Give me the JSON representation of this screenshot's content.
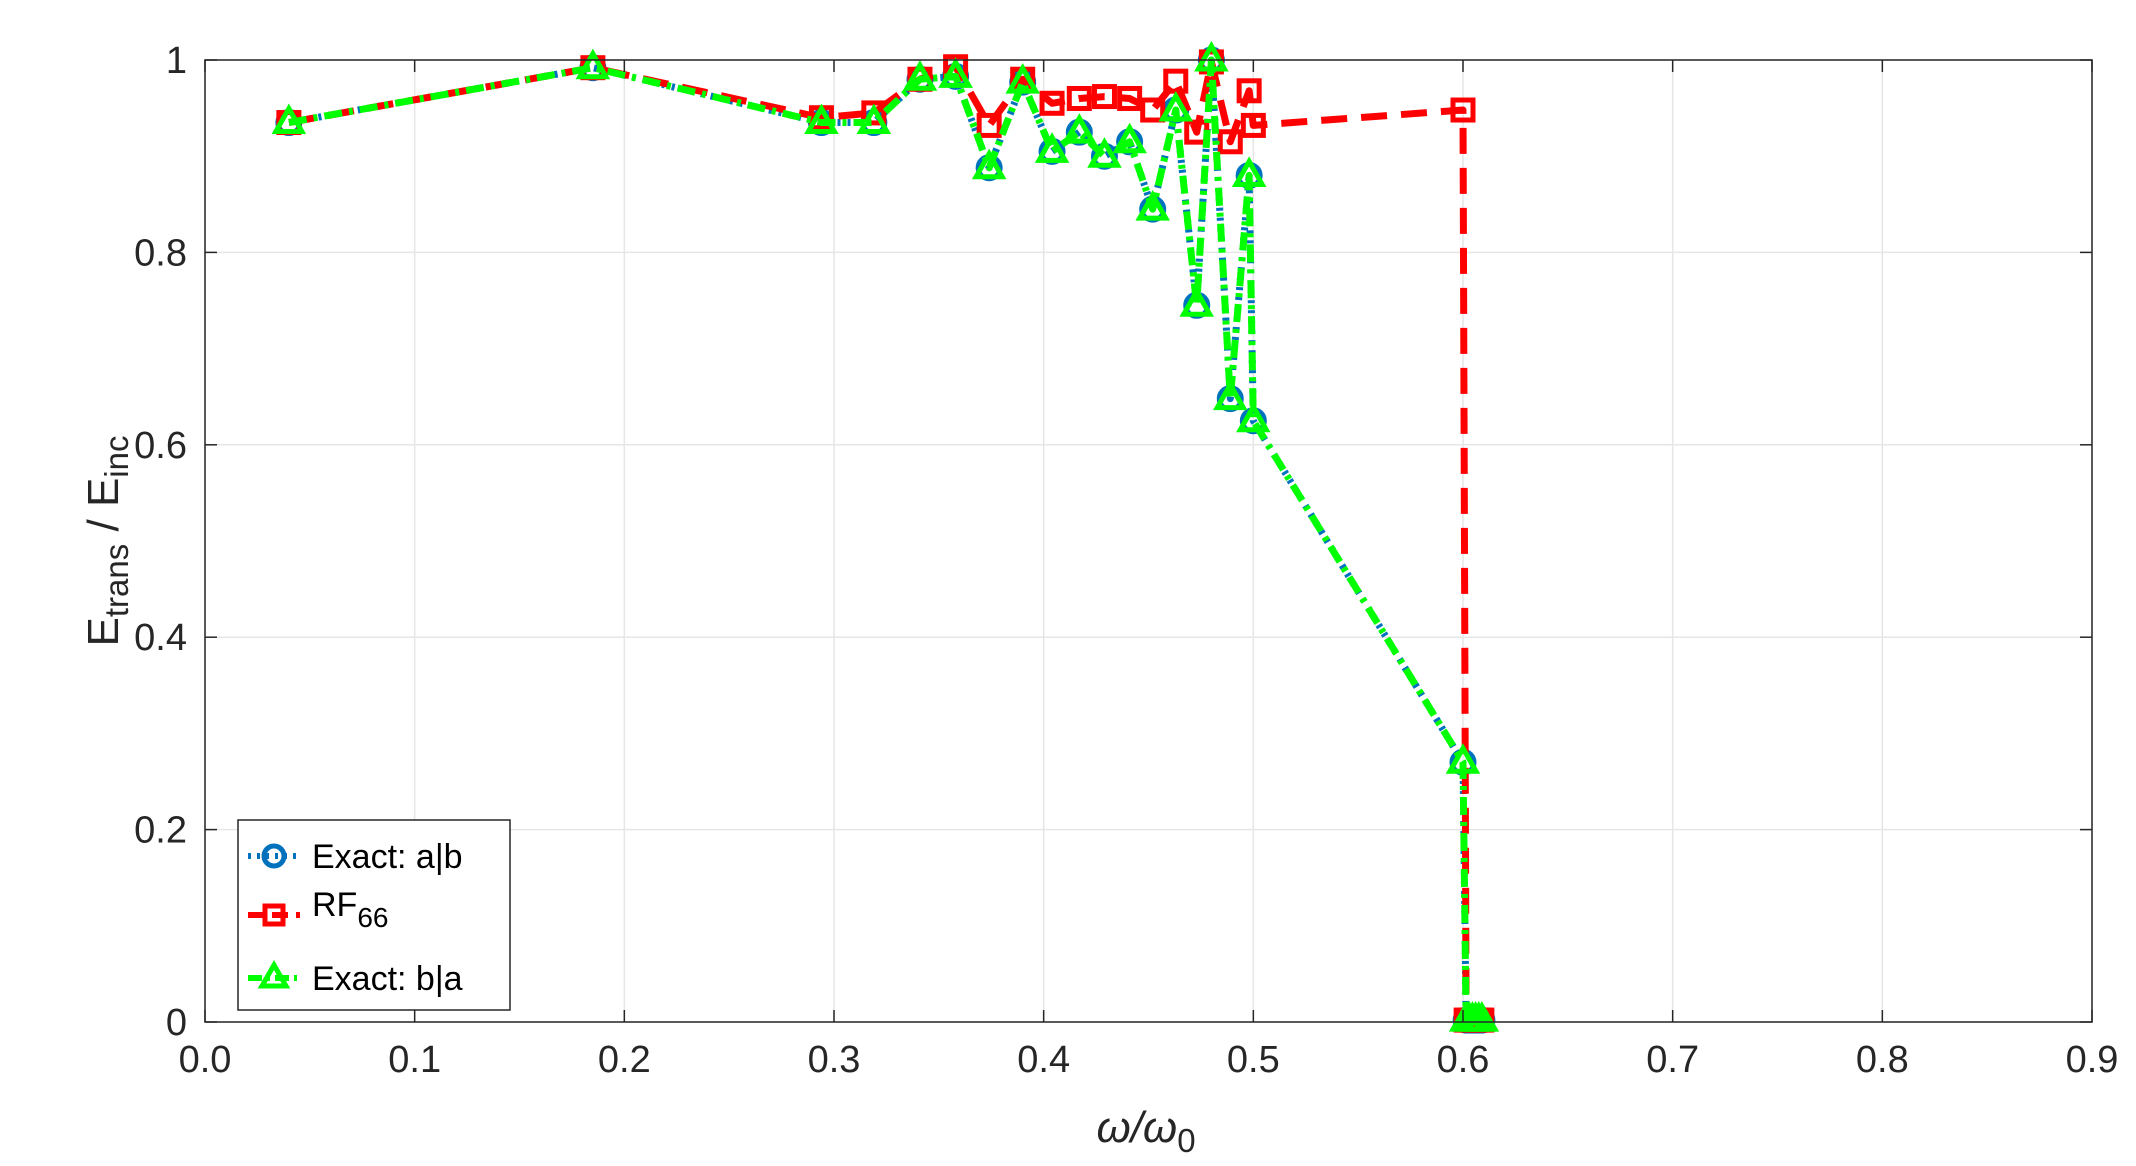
{
  "chart_data": {
    "type": "line",
    "xlabel": {
      "main": "ω/ω",
      "sub": "0"
    },
    "ylabel": {
      "e1": "E",
      "s1": "trans",
      "mid": " / E",
      "s2": "inc"
    },
    "xlim": [
      0.0,
      0.9
    ],
    "ylim": [
      0,
      1
    ],
    "xticks": [
      "0.0",
      "0.1",
      "0.2",
      "0.3",
      "0.4",
      "0.5",
      "0.6",
      "0.7",
      "0.8",
      "0.9"
    ],
    "yticks": [
      "0",
      "0.2",
      "0.4",
      "0.6",
      "0.8",
      "1"
    ],
    "grid": true,
    "legend_position": "bottom-left",
    "series": [
      {
        "name": "Exact: a|b",
        "color": "#0072BD",
        "marker": "circle",
        "line": "dotted",
        "x": [
          0.04,
          0.185,
          0.294,
          0.319,
          0.341,
          0.358,
          0.374,
          0.39,
          0.404,
          0.417,
          0.429,
          0.441,
          0.452,
          0.463,
          0.473,
          0.48,
          0.489,
          0.498,
          0.5,
          0.6,
          0.6015,
          0.603,
          0.6045,
          0.606,
          0.6075,
          0.609
        ],
        "y": [
          0.935,
          0.992,
          0.935,
          0.935,
          0.98,
          0.983,
          0.888,
          0.977,
          0.905,
          0.925,
          0.9,
          0.915,
          0.845,
          0.948,
          0.745,
          1.0,
          0.648,
          0.88,
          0.625,
          0.27,
          0.002,
          0.002,
          0.002,
          0.002,
          0.002,
          0.002
        ]
      },
      {
        "name": "RF",
        "name_sub": "66",
        "color": "#FF0000",
        "marker": "square",
        "line": "dashed",
        "x": [
          0.04,
          0.185,
          0.294,
          0.319,
          0.341,
          0.358,
          0.374,
          0.39,
          0.404,
          0.417,
          0.429,
          0.441,
          0.452,
          0.463,
          0.473,
          0.48,
          0.489,
          0.498,
          0.5,
          0.6,
          0.6015,
          0.603,
          0.6045,
          0.606,
          0.6075,
          0.609
        ],
        "y": [
          0.935,
          0.992,
          0.94,
          0.945,
          0.98,
          0.993,
          0.932,
          0.98,
          0.955,
          0.96,
          0.962,
          0.96,
          0.948,
          0.978,
          0.925,
          0.998,
          0.915,
          0.968,
          0.932,
          0.948,
          0.002,
          0.002,
          0.002,
          0.002,
          0.002,
          0.002
        ]
      },
      {
        "name": "Exact: b|a",
        "color": "#00FF00",
        "marker": "triangle",
        "line": "dashdot",
        "x": [
          0.04,
          0.185,
          0.294,
          0.319,
          0.341,
          0.358,
          0.374,
          0.39,
          0.404,
          0.417,
          0.429,
          0.441,
          0.452,
          0.463,
          0.473,
          0.48,
          0.489,
          0.498,
          0.5,
          0.6,
          0.6015,
          0.603,
          0.6045,
          0.606,
          0.6075,
          0.609
        ],
        "y": [
          0.935,
          0.992,
          0.935,
          0.935,
          0.98,
          0.983,
          0.888,
          0.977,
          0.905,
          0.925,
          0.9,
          0.915,
          0.845,
          0.948,
          0.745,
          1.0,
          0.648,
          0.88,
          0.625,
          0.27,
          0.002,
          0.002,
          0.002,
          0.002,
          0.002,
          0.002
        ]
      }
    ]
  }
}
